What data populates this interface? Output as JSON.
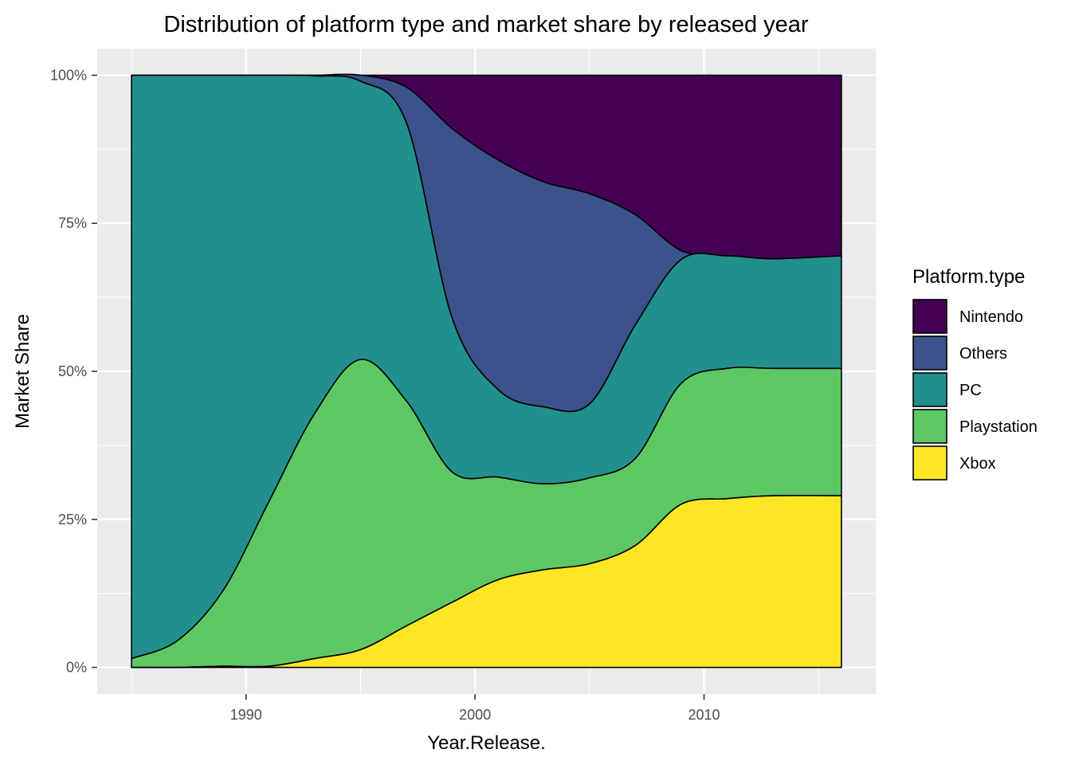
{
  "chart_data": {
    "type": "area",
    "stacking": "fill",
    "title": "Distribution of platform type and market share by released year",
    "xlabel": "Year.Release.",
    "ylabel": "Market Share",
    "xlim": [
      1983.5,
      2017.5
    ],
    "ylim": [
      -0.045,
      1.045
    ],
    "x_ticks": [
      1990,
      2000,
      2010
    ],
    "x_tick_labels": [
      "1990",
      "2000",
      "2010"
    ],
    "y_ticks": [
      0,
      0.25,
      0.5,
      0.75,
      1
    ],
    "y_tick_labels": [
      "0%",
      "25%",
      "50%",
      "75%",
      "100%"
    ],
    "grid": true,
    "legend": {
      "title": "Platform.type",
      "position": "right",
      "entries": [
        "Nintendo",
        "Others",
        "PC",
        "Playstation",
        "Xbox"
      ]
    },
    "x": [
      1985,
      1987,
      1989,
      1991,
      1993,
      1995,
      1997,
      1999,
      2001,
      2003,
      2005,
      2007,
      2009,
      2011,
      2013,
      2016
    ],
    "series": [
      {
        "name": "Nintendo",
        "color": "#440154",
        "values": [
          0,
          0,
          0,
          0,
          0,
          0,
          0.02,
          0.09,
          0.14,
          0.18,
          0.2,
          0.24,
          0.29,
          0.305,
          0.31,
          0.305
        ]
      },
      {
        "name": "Others",
        "color": "#3B528B",
        "values": [
          0,
          0,
          0,
          0,
          0.001,
          0.01,
          0.06,
          0.32,
          0.38,
          0.38,
          0.355,
          0.19,
          0.015,
          0,
          0,
          0
        ]
      },
      {
        "name": "PC",
        "color": "#21908C",
        "values": [
          0.985,
          0.955,
          0.87,
          0.72,
          0.57,
          0.47,
          0.47,
          0.26,
          0.145,
          0.13,
          0.125,
          0.23,
          0.205,
          0.19,
          0.185,
          0.19
        ]
      },
      {
        "name": "Playstation",
        "color": "#5DC863",
        "values": [
          0.015,
          0.045,
          0.128,
          0.278,
          0.414,
          0.49,
          0.38,
          0.22,
          0.17,
          0.145,
          0.145,
          0.15,
          0.2,
          0.22,
          0.215,
          0.215
        ]
      },
      {
        "name": "Xbox",
        "color": "#FDE725",
        "values": [
          0,
          0,
          0.002,
          0.002,
          0.015,
          0.03,
          0.07,
          0.11,
          0.145,
          0.165,
          0.175,
          0.21,
          0.27,
          0.285,
          0.29,
          0.29
        ]
      }
    ]
  }
}
